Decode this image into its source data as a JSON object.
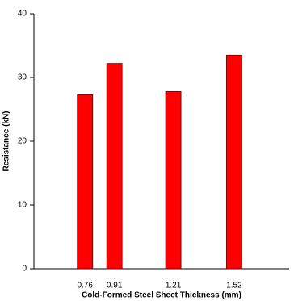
{
  "chart_data": {
    "type": "bar",
    "x_label": "Cold-Formed Steel Sheet Thickness (mm)",
    "y_label": "Resistance (kN)",
    "x": [
      0.76,
      0.91,
      1.21,
      1.52
    ],
    "values": [
      27.3,
      32.2,
      27.8,
      33.5
    ],
    "color": "#ff0000",
    "xlim": [
      0.5,
      1.8
    ],
    "xticks": [
      0.76,
      0.91,
      1.21,
      1.52
    ],
    "ylim": [
      0,
      40
    ],
    "yticks": [
      0,
      10,
      20,
      30,
      40
    ],
    "grid": false
  }
}
